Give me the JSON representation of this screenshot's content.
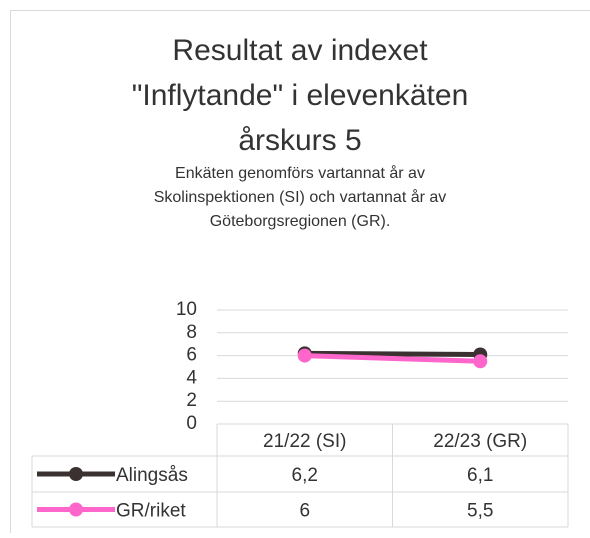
{
  "chart_data": {
    "type": "line",
    "title": [
      "Resultat av indexet",
      "\"Inflytande\" i elevenkäten",
      "årskurs 5"
    ],
    "subtitle": [
      "Enkäten genomförs vartannat år av",
      "Skolinspektionen (SI) och vartannat år av",
      "Göteborgsregionen (GR)."
    ],
    "categories": [
      "21/22 (SI)",
      "22/23 (GR)"
    ],
    "series": [
      {
        "name": "Alingsås",
        "color": "#3b3131",
        "values": [
          6.2,
          6.1
        ],
        "value_labels": [
          "6,2",
          "6,1"
        ]
      },
      {
        "name": "GR/riket",
        "color": "#ff66cc",
        "values": [
          6,
          5.5
        ],
        "value_labels": [
          "6",
          "5,5"
        ]
      }
    ],
    "ylim": [
      0,
      10
    ],
    "yticks": [
      0,
      2,
      4,
      6,
      8,
      10
    ],
    "grid": true,
    "data_table": true
  }
}
